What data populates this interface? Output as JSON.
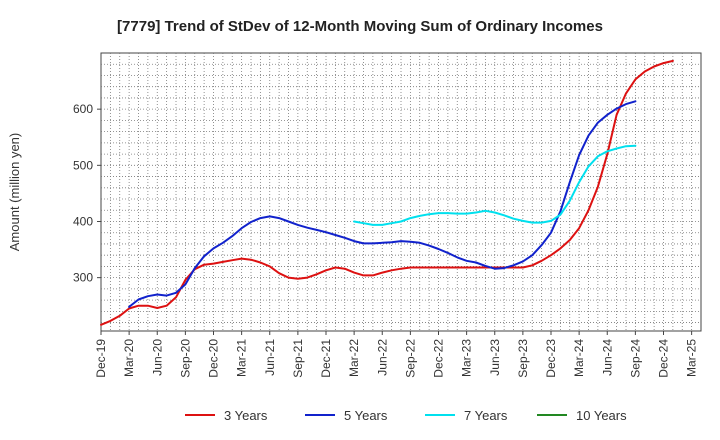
{
  "chart_data": {
    "type": "line",
    "title": "[7779]  Trend of StDev of 12-Month Moving Sum of Ordinary Incomes",
    "xlabel": "",
    "ylabel": "Amount (million yen)",
    "ylim": [
      205,
      700
    ],
    "yticks": [
      300,
      400,
      500,
      600
    ],
    "grid": true,
    "legend_position": "bottom",
    "x_tick_labels": [
      "Dec-19",
      "Mar-20",
      "Jun-20",
      "Sep-20",
      "Dec-20",
      "Mar-21",
      "Jun-21",
      "Sep-21",
      "Dec-21",
      "Mar-22",
      "Jun-22",
      "Sep-22",
      "Dec-22",
      "Mar-23",
      "Jun-23",
      "Sep-23",
      "Dec-23",
      "Mar-24",
      "Jun-24",
      "Sep-24",
      "Dec-24",
      "Mar-25"
    ],
    "x_start": "Dec-19",
    "x_months": 64,
    "series": [
      {
        "name": "3 Years",
        "color": "#dd1111",
        "start_index": 0,
        "values": [
          216,
          223,
          232,
          245,
          250,
          250,
          246,
          250,
          265,
          296,
          315,
          323,
          325,
          328,
          331,
          334,
          332,
          327,
          320,
          308,
          300,
          298,
          300,
          306,
          313,
          318,
          316,
          309,
          304,
          304,
          309,
          313,
          316,
          318,
          318,
          318,
          318,
          318,
          318,
          318,
          318,
          318,
          318,
          318,
          318,
          318,
          322,
          330,
          340,
          352,
          367,
          388,
          420,
          462,
          520,
          590,
          628,
          653,
          667,
          676,
          682,
          686
        ]
      },
      {
        "name": "5 Years",
        "color": "#1122cc",
        "start_index": 3,
        "values": [
          248,
          261,
          267,
          270,
          268,
          273,
          288,
          317,
          338,
          352,
          362,
          374,
          388,
          399,
          406,
          409,
          406,
          400,
          394,
          389,
          385,
          381,
          376,
          371,
          365,
          361,
          361,
          362,
          363,
          365,
          364,
          362,
          357,
          351,
          344,
          336,
          330,
          327,
          321,
          316,
          317,
          322,
          329,
          340,
          358,
          380,
          418,
          470,
          518,
          553,
          576,
          590,
          601,
          609,
          614
        ]
      },
      {
        "name": "7 Years",
        "color": "#00e0ee",
        "start_index": 27,
        "values": [
          400,
          397,
          394,
          394,
          397,
          400,
          406,
          410,
          413,
          415,
          415,
          414,
          414,
          416,
          419,
          416,
          411,
          405,
          401,
          398,
          398,
          401,
          412,
          437,
          470,
          498,
          516,
          525,
          530,
          534,
          535
        ]
      },
      {
        "name": "10 Years",
        "color": "#228822",
        "start_index": 0,
        "values": []
      }
    ]
  }
}
